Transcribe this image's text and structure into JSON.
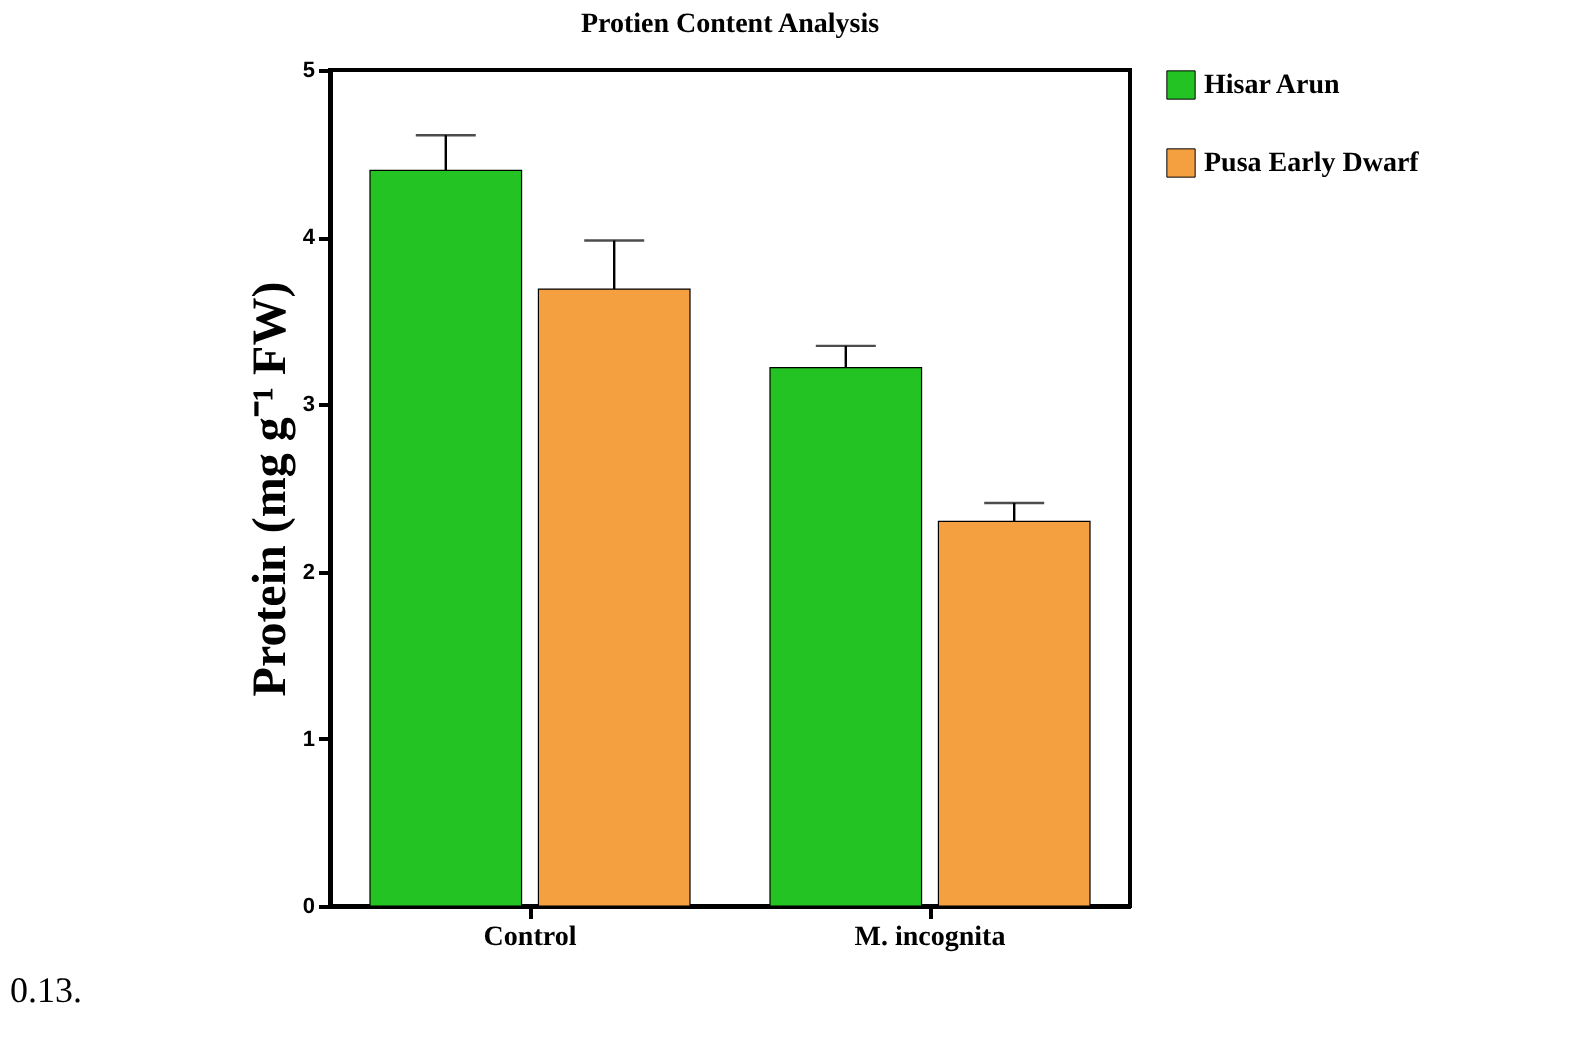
{
  "chart_data": {
    "type": "bar",
    "title": "Protien Content Analysis",
    "ylabel": "Protein (mg g⁻¹ FW)",
    "categories": [
      "Control",
      "M. incognita"
    ],
    "series": [
      {
        "name": "Hisar Arun",
        "color": "#22c322",
        "values": [
          4.4,
          3.22
        ],
        "errors": [
          [
            4.4,
            4.61
          ],
          [
            3.22,
            3.35
          ]
        ]
      },
      {
        "name": "Pusa Early Dwarf",
        "color": "#f5a040",
        "values": [
          3.69,
          2.3
        ],
        "errors": [
          [
            3.69,
            3.98
          ],
          [
            2.3,
            2.41
          ]
        ]
      }
    ],
    "ylim": [
      0,
      5
    ],
    "yticks": [
      0,
      1,
      2,
      3,
      4,
      5
    ],
    "grid": false,
    "legend": "top right",
    "annotations": [
      "0.13."
    ]
  }
}
